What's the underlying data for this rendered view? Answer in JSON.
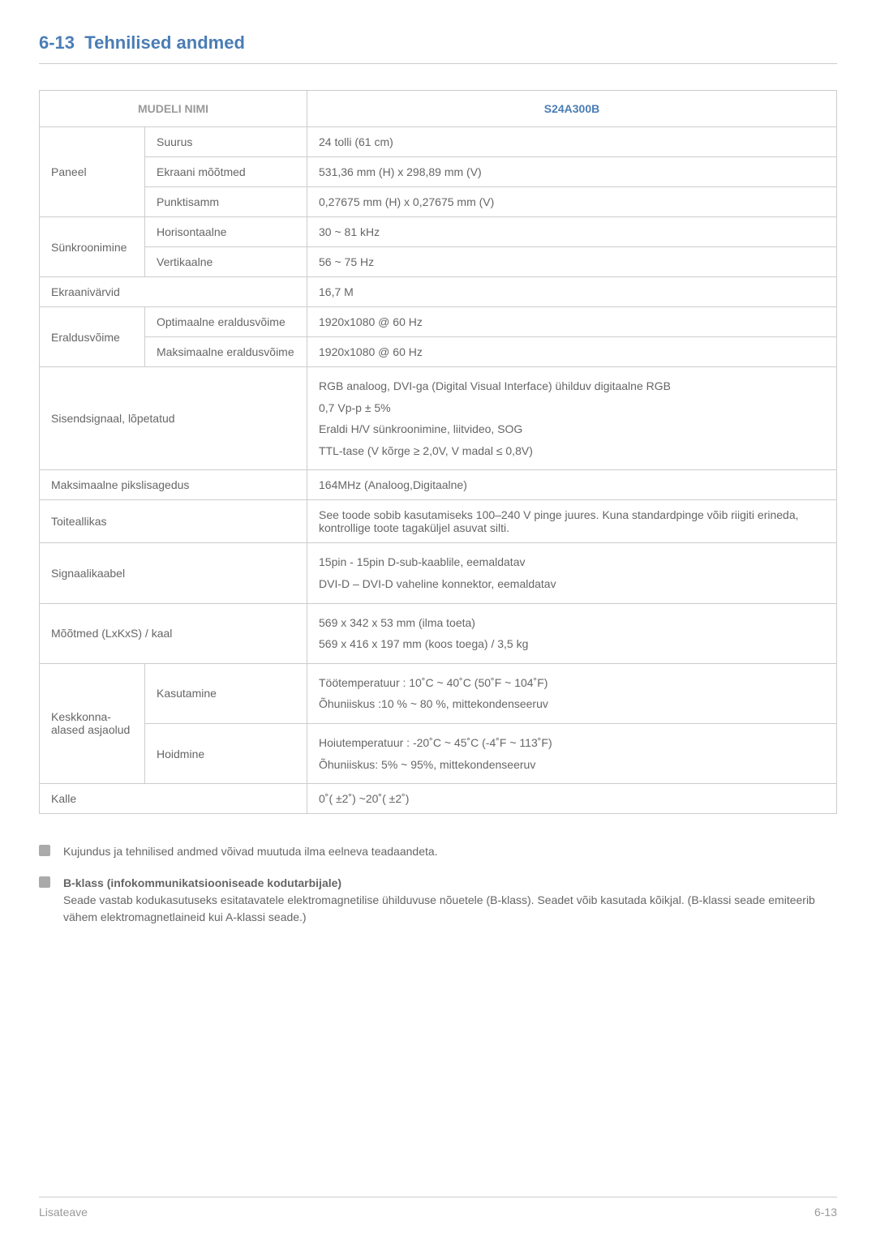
{
  "section": {
    "number": "6-13",
    "title": "Tehnilised andmed"
  },
  "table": {
    "header": {
      "left": "MUDELI NIMI",
      "right": "S24A300B"
    },
    "rows": {
      "paneel": {
        "label": "Paneel",
        "suurus": {
          "label": "Suurus",
          "value": "24 tolli (61 cm)"
        },
        "ekraani": {
          "label": "Ekraani mõõtmed",
          "value": "531,36 mm (H) x 298,89 mm (V)"
        },
        "punktisamm": {
          "label": "Punktisamm",
          "value": "0,27675 mm (H) x 0,27675 mm (V)"
        }
      },
      "sunkroonimine": {
        "label": "Sünkroonim­ine",
        "horisontaalne": {
          "label": "Horisontaalne",
          "value": "30 ~ 81 kHz"
        },
        "vertikaalne": {
          "label": "Vertikaalne",
          "value": "56 ~ 75 Hz"
        }
      },
      "ekraanivarvid": {
        "label": "Ekraanivärvid",
        "value": "16,7 M"
      },
      "eraldusvõime": {
        "label": "Eraldusvõime",
        "optimaalne": {
          "label": "Optimaalne eraldusvõime",
          "value": "1920x1080 @ 60 Hz"
        },
        "maksimaalne": {
          "label": "Maksimaalne eraldus­võime",
          "value": "1920x1080 @ 60 Hz"
        }
      },
      "sisendsignaal": {
        "label": "Sisendsignaal, lõpetatud",
        "line1": "RGB analoog, DVI-ga (Digital Visual Interface) ühilduv digitaalne RGB",
        "line2": "0,7 Vp-p ± 5%",
        "line3": "Eraldi H/V sünkroonimine, liitvideo, SOG",
        "line4": "TTL-tase (V kõrge ≥ 2,0V, V madal ≤ 0,8V)"
      },
      "maksimaalne_pikslisagedus": {
        "label": "Maksimaalne pikslisagedus",
        "value": "164MHz (Analoog,Digitaalne)"
      },
      "toiteallikas": {
        "label": "Toiteallikas",
        "value": "See toode sobib kasutamiseks 100–240 V pinge juures. Kuna standardpinge võib riigiti erineda, kontrollige toote tagaküljel asuvat silti."
      },
      "signaalikaabel": {
        "label": "Signaalikaabel",
        "line1": "15pin - 15pin D-sub-kaablile, eemaldatav",
        "line2": "DVI-D – DVI-D vaheline konnektor, eemaldatav"
      },
      "mootmed": {
        "label": "Mõõtmed (LxKxS) / kaal",
        "line1": "569 x 342 x 53 mm (ilma toeta)",
        "line2": "569 x 416 x 197 mm (koos toega) / 3,5 kg"
      },
      "keskkonna": {
        "label": "Keskkonna­alased asja­olud",
        "kasutamine": {
          "label": "Kasutamine",
          "line1": "Töötemperatuur : 10˚C ~ 40˚C (50˚F ~ 104˚F)",
          "line2": "Õhuniiskus :10 % ~ 80 %, mittekondenseeruv"
        },
        "hoidmine": {
          "label": "Hoidmine",
          "line1": "Hoiutemperatuur : -20˚C ~ 45˚C (-4˚F ~ 113˚F)",
          "line2": "Õhuniiskus: 5% ~ 95%, mittekondenseeruv"
        }
      },
      "kalle": {
        "label": "Kalle",
        "value": "0˚( ±2˚) ~20˚( ±2˚)"
      }
    }
  },
  "notes": {
    "item1": "Kujundus ja tehnilised andmed võivad muutuda ilma eelneva teadaandeta.",
    "item2_title": "B-klass (infokommunikatsiooniseade kodutarbijale)",
    "item2_body": "Seade vastab kodukasutuseks esitatavatele elektromagnetilise ühilduvuse nõuetele (B-klass). Seadet võib kasutada kõikjal. (B-klassi seade emiteerib vähem elektromagnetlaineid kui A-klassi seade.)"
  },
  "footer": {
    "left": "Lisateave",
    "right": "6-13"
  }
}
